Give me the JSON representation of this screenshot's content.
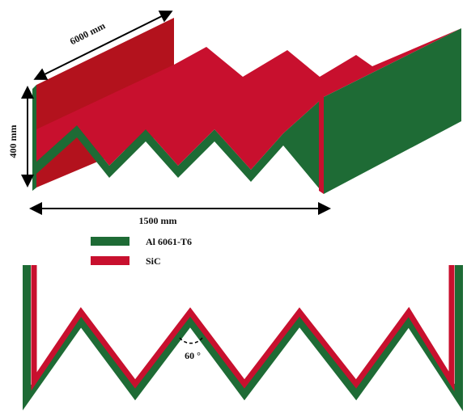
{
  "dimensions": {
    "length": "6000 mm",
    "height": "400 mm",
    "width": "1500 mm"
  },
  "legend": {
    "items": [
      {
        "label": "Al 6061-T6"
      },
      {
        "label": "SiC"
      }
    ]
  },
  "angle": {
    "label": "60 °"
  }
}
